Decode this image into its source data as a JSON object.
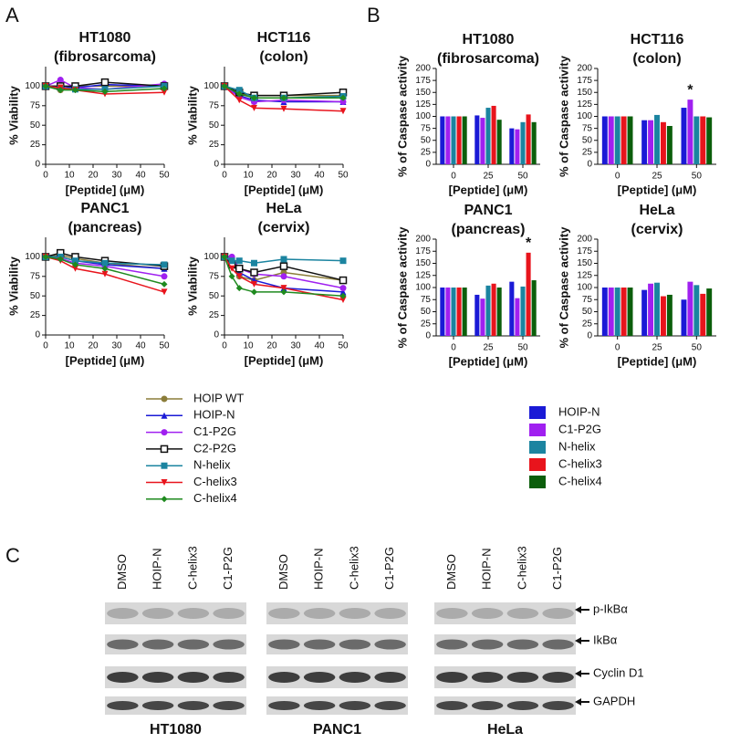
{
  "panel_labels": [
    "A",
    "B",
    "C"
  ],
  "legends": {
    "lines": [
      {
        "name": "HOIP WT",
        "color": "#8b7d3a",
        "marker": "circle"
      },
      {
        "name": "HOIP-N",
        "color": "#1a1ad6",
        "marker": "triangle"
      },
      {
        "name": "C1-P2G",
        "color": "#a020f0",
        "marker": "circle"
      },
      {
        "name": "C2-P2G",
        "color": "#111111",
        "marker": "square-open"
      },
      {
        "name": "N-helix",
        "color": "#1b84a0",
        "marker": "square"
      },
      {
        "name": "C-helix3",
        "color": "#e8141c",
        "marker": "triangle-down"
      },
      {
        "name": "C-helix4",
        "color": "#1f8a1f",
        "marker": "diamond"
      }
    ],
    "bars": [
      {
        "name": "HOIP-N",
        "color": "#1a1ad6"
      },
      {
        "name": "C1-P2G",
        "color": "#a020f0"
      },
      {
        "name": "N-helix",
        "color": "#1b84a0"
      },
      {
        "name": "C-helix3",
        "color": "#e8141c"
      },
      {
        "name": "C-helix4",
        "color": "#0b5e0b"
      }
    ]
  },
  "chart_data": [
    {
      "type": "line",
      "title": [
        "HT1080",
        "(fibrosarcoma)"
      ],
      "xlabel": "[Peptide] (μM)",
      "ylabel": "% Viability",
      "x": [
        0,
        6.25,
        12.5,
        25,
        50
      ],
      "xlim": [
        0,
        50
      ],
      "xticks": [
        0,
        10,
        20,
        30,
        40,
        50
      ],
      "ylim": [
        0,
        125
      ],
      "yticks": [
        0,
        25,
        50,
        75,
        100
      ],
      "series": [
        {
          "values": [
            100,
            95,
            100,
            100,
            100
          ]
        },
        {
          "values": [
            100,
            100,
            98,
            102,
            100
          ]
        },
        {
          "values": [
            100,
            108,
            98,
            96,
            103
          ]
        },
        {
          "values": [
            100,
            100,
            100,
            105,
            100
          ]
        },
        {
          "values": [
            100,
            98,
            96,
            96,
            100
          ]
        },
        {
          "values": [
            100,
            98,
            95,
            90,
            92
          ]
        },
        {
          "values": [
            100,
            95,
            95,
            93,
            97
          ]
        }
      ]
    },
    {
      "type": "line",
      "title": [
        "HCT116",
        "(colon)"
      ],
      "xlabel": "[Peptide] (μM)",
      "ylabel": "% Viability",
      "x": [
        0,
        6.25,
        12.5,
        25,
        50
      ],
      "xlim": [
        0,
        50
      ],
      "xticks": [
        0,
        10,
        20,
        30,
        40,
        50
      ],
      "ylim": [
        0,
        125
      ],
      "yticks": [
        0,
        25,
        50,
        75,
        100
      ],
      "series": [
        {
          "values": [
            100,
            90,
            88,
            88,
            88
          ]
        },
        {
          "values": [
            100,
            88,
            82,
            80,
            80
          ]
        },
        {
          "values": [
            100,
            86,
            80,
            82,
            80
          ]
        },
        {
          "values": [
            100,
            92,
            88,
            88,
            92
          ]
        },
        {
          "values": [
            100,
            95,
            85,
            85,
            87
          ]
        },
        {
          "values": [
            100,
            82,
            72,
            71,
            68
          ]
        },
        {
          "values": [
            100,
            90,
            85,
            85,
            85
          ]
        }
      ]
    },
    {
      "type": "line",
      "title": [
        "PANC1",
        "(pancreas)"
      ],
      "xlabel": "[Peptide] (μM)",
      "ylabel": "% Viability",
      "x": [
        0,
        6.25,
        12.5,
        25,
        50
      ],
      "xlim": [
        0,
        50
      ],
      "xticks": [
        0,
        10,
        20,
        30,
        40,
        50
      ],
      "ylim": [
        0,
        125
      ],
      "yticks": [
        0,
        25,
        50,
        75,
        100
      ],
      "series": [
        {
          "values": [
            100,
            102,
            98,
            92,
            85
          ]
        },
        {
          "values": [
            100,
            100,
            95,
            90,
            85
          ]
        },
        {
          "values": [
            100,
            98,
            92,
            88,
            75
          ]
        },
        {
          "values": [
            100,
            105,
            100,
            95,
            88
          ]
        },
        {
          "values": [
            100,
            100,
            95,
            92,
            90
          ]
        },
        {
          "values": [
            100,
            95,
            85,
            78,
            55
          ]
        },
        {
          "values": [
            100,
            97,
            90,
            85,
            65
          ]
        }
      ]
    },
    {
      "type": "line",
      "title": [
        "HeLa",
        "(cervix)"
      ],
      "xlabel": "[Peptide] (μM)",
      "ylabel": "% Viability",
      "x": [
        0,
        3.125,
        6.25,
        12.5,
        25,
        50
      ],
      "xlim": [
        0,
        50
      ],
      "xticks": [
        0,
        10,
        20,
        30,
        40,
        50
      ],
      "ylim": [
        0,
        125
      ],
      "yticks": [
        0,
        25,
        50,
        75,
        100
      ],
      "series": [
        {
          "values": [
            100,
            95,
            75,
            70,
            80,
            70
          ]
        },
        {
          "values": [
            100,
            95,
            80,
            70,
            60,
            55
          ]
        },
        {
          "values": [
            100,
            100,
            85,
            78,
            75,
            60
          ]
        },
        {
          "values": [
            100,
            90,
            85,
            80,
            88,
            70
          ]
        },
        {
          "values": [
            100,
            95,
            95,
            92,
            97,
            95
          ]
        },
        {
          "values": [
            100,
            85,
            75,
            65,
            60,
            45
          ]
        },
        {
          "values": [
            100,
            75,
            60,
            55,
            55,
            50
          ]
        }
      ]
    },
    {
      "type": "bar",
      "title": [
        "HT1080",
        "(fibrosarcoma)"
      ],
      "xlabel": "[Peptide] (μM)",
      "ylabel": "% of Caspase activity",
      "categories": [
        "0",
        "25",
        "50"
      ],
      "ylim": [
        0,
        200
      ],
      "yticks": [
        0,
        25,
        50,
        75,
        100,
        125,
        150,
        175,
        200
      ],
      "series": [
        {
          "values": [
            100,
            102,
            75
          ]
        },
        {
          "values": [
            100,
            97,
            73
          ]
        },
        {
          "values": [
            100,
            118,
            88
          ]
        },
        {
          "values": [
            100,
            122,
            104
          ]
        },
        {
          "values": [
            100,
            93,
            88
          ]
        }
      ]
    },
    {
      "type": "bar",
      "title": [
        "HCT116",
        "(colon)"
      ],
      "xlabel": "[Peptide] (μM)",
      "ylabel": "% of Caspase activity",
      "categories": [
        "0",
        "25",
        "50"
      ],
      "ylim": [
        0,
        200
      ],
      "yticks": [
        0,
        25,
        50,
        75,
        100,
        125,
        150,
        175,
        200
      ],
      "series": [
        {
          "values": [
            100,
            92,
            118
          ]
        },
        {
          "values": [
            100,
            92,
            135
          ]
        },
        {
          "values": [
            100,
            103,
            100
          ]
        },
        {
          "values": [
            100,
            88,
            100
          ]
        },
        {
          "values": [
            100,
            80,
            98
          ]
        }
      ],
      "annotations": [
        {
          "text": "*",
          "series": "C1-P2G",
          "category": "50"
        }
      ]
    },
    {
      "type": "bar",
      "title": [
        "PANC1",
        "(pancreas)"
      ],
      "xlabel": "[Peptide] (μM)",
      "ylabel": "% of Caspase activity",
      "categories": [
        "0",
        "25",
        "50"
      ],
      "ylim": [
        0,
        200
      ],
      "yticks": [
        0,
        25,
        50,
        75,
        100,
        125,
        150,
        175,
        200
      ],
      "series": [
        {
          "values": [
            100,
            85,
            112
          ]
        },
        {
          "values": [
            100,
            77,
            78
          ]
        },
        {
          "values": [
            100,
            104,
            102
          ]
        },
        {
          "values": [
            100,
            108,
            172
          ]
        },
        {
          "values": [
            100,
            100,
            115
          ]
        }
      ],
      "annotations": [
        {
          "text": "*",
          "series": "C-helix3",
          "category": "50"
        }
      ]
    },
    {
      "type": "bar",
      "title": [
        "HeLa",
        "(cervix)"
      ],
      "xlabel": "[Peptide] (μM)",
      "ylabel": "% of Caspase activity",
      "categories": [
        "0",
        "25",
        "50"
      ],
      "ylim": [
        0,
        200
      ],
      "yticks": [
        0,
        25,
        50,
        75,
        100,
        125,
        150,
        175,
        200
      ],
      "series": [
        {
          "values": [
            100,
            95,
            75
          ]
        },
        {
          "values": [
            100,
            108,
            112
          ]
        },
        {
          "values": [
            100,
            110,
            105
          ]
        },
        {
          "values": [
            100,
            82,
            87
          ]
        },
        {
          "values": [
            100,
            85,
            98
          ]
        }
      ]
    }
  ],
  "blots": {
    "proteins": [
      "p-IkBα",
      "IkBα",
      "Cyclin D1",
      "GAPDH"
    ],
    "groups": [
      {
        "cell_line": "HT1080",
        "lanes": [
          "DMSO",
          "HOIP-N",
          "C-helix3",
          "C1-P2G"
        ]
      },
      {
        "cell_line": "PANC1",
        "lanes": [
          "DMSO",
          "HOIP-N",
          "C-helix3",
          "C1-P2G"
        ]
      },
      {
        "cell_line": "HeLa",
        "lanes": [
          "DMSO",
          "HOIP-N",
          "C-helix3",
          "C1-P2G"
        ]
      }
    ]
  }
}
